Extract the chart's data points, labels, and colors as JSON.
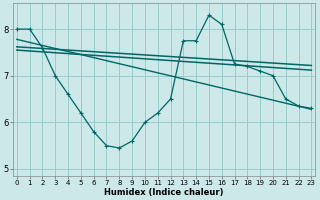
{
  "title": "",
  "xlabel": "Humidex (Indice chaleur)",
  "bg_color": "#cce8e8",
  "grid_color": "#99cccc",
  "line_color": "#006666",
  "xlim": [
    -0.3,
    23.3
  ],
  "ylim": [
    4.85,
    8.55
  ],
  "yticks": [
    5,
    6,
    7,
    8
  ],
  "xticks": [
    0,
    1,
    2,
    3,
    4,
    5,
    6,
    7,
    8,
    9,
    10,
    11,
    12,
    13,
    14,
    15,
    16,
    17,
    18,
    19,
    20,
    21,
    22,
    23
  ],
  "line1_x": [
    0,
    1,
    2,
    3,
    4,
    5,
    6,
    7,
    8,
    9,
    10,
    11,
    12,
    13,
    14,
    15,
    16,
    17,
    18,
    19,
    20,
    21,
    22,
    23
  ],
  "line1_y": [
    8.0,
    8.0,
    7.6,
    7.0,
    6.6,
    6.2,
    5.8,
    5.5,
    5.45,
    5.6,
    6.0,
    6.2,
    6.5,
    7.75,
    7.75,
    8.3,
    8.1,
    7.25,
    7.2,
    7.1,
    7.0,
    6.5,
    6.35,
    6.3
  ],
  "line2_x": [
    0,
    23
  ],
  "line2_y": [
    7.62,
    7.22
  ],
  "line3_x": [
    0,
    23
  ],
  "line3_y": [
    7.55,
    7.12
  ],
  "line4_x": [
    0,
    23
  ],
  "line4_y": [
    7.78,
    6.28
  ]
}
